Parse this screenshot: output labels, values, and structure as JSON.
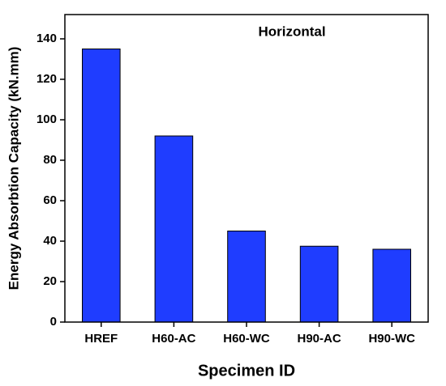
{
  "chart_data": {
    "type": "bar",
    "title": "Horizontal",
    "x_label": "Specimen ID",
    "y_label": "Energy Absorbtion Capacity (kN.mm)",
    "categories": [
      "HREF",
      "H60-AC",
      "H60-WC",
      "H90-AC",
      "H90-WC"
    ],
    "values": [
      135,
      92,
      45,
      37.5,
      36
    ],
    "color": "#1f3dff",
    "ylim": [
      0,
      152
    ],
    "yticks": [
      0,
      20,
      40,
      60,
      80,
      100,
      120,
      140
    ],
    "grid": false
  }
}
